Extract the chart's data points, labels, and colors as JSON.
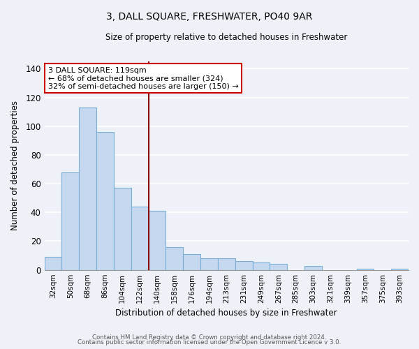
{
  "title": "3, DALL SQUARE, FRESHWATER, PO40 9AR",
  "subtitle": "Size of property relative to detached houses in Freshwater",
  "xlabel": "Distribution of detached houses by size in Freshwater",
  "ylabel": "Number of detached properties",
  "bar_labels": [
    "32sqm",
    "50sqm",
    "68sqm",
    "86sqm",
    "104sqm",
    "122sqm",
    "140sqm",
    "158sqm",
    "176sqm",
    "194sqm",
    "213sqm",
    "231sqm",
    "249sqm",
    "267sqm",
    "285sqm",
    "303sqm",
    "321sqm",
    "339sqm",
    "357sqm",
    "375sqm",
    "393sqm"
  ],
  "bar_values": [
    9,
    68,
    113,
    96,
    57,
    44,
    41,
    16,
    11,
    8,
    8,
    6,
    5,
    4,
    0,
    3,
    0,
    0,
    1,
    0,
    1
  ],
  "bar_color": "#c5d8f0",
  "bar_edge_color": "#7aaed4",
  "vline_x": 5.5,
  "vline_color": "#880000",
  "ylim": [
    0,
    145
  ],
  "yticks": [
    0,
    20,
    40,
    60,
    80,
    100,
    120,
    140
  ],
  "annotation_title": "3 DALL SQUARE: 119sqm",
  "annotation_line1": "← 68% of detached houses are smaller (324)",
  "annotation_line2": "32% of semi-detached houses are larger (150) →",
  "annotation_box_color": "#ffffff",
  "annotation_box_edge": "#cc0000",
  "footer_line1": "Contains HM Land Registry data © Crown copyright and database right 2024.",
  "footer_line2": "Contains public sector information licensed under the Open Government Licence v 3.0.",
  "background_color": "#eef2f8"
}
